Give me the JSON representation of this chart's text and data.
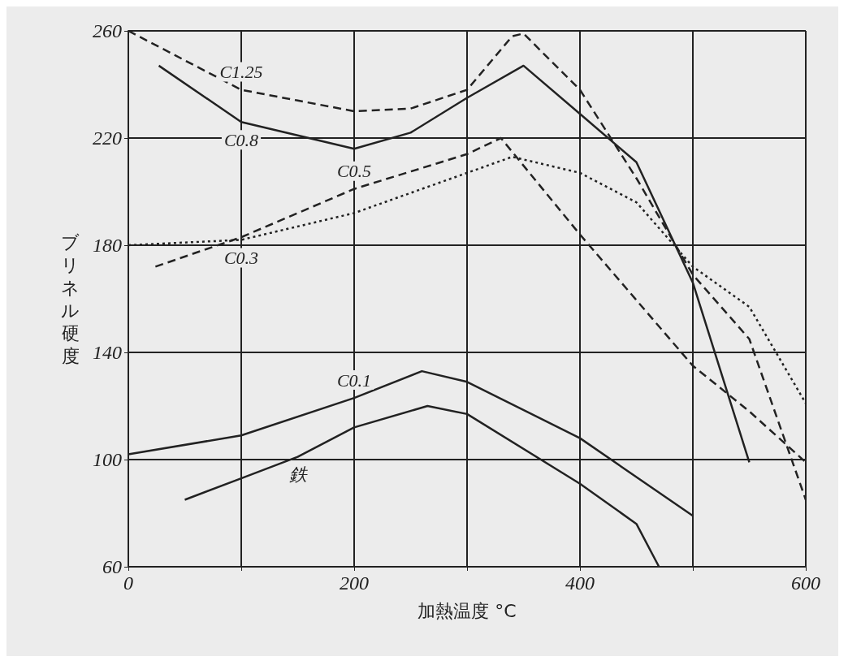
{
  "chart_data": {
    "type": "line",
    "xlabel": "加熱温度 °C",
    "ylabel": "ブリネル硬度",
    "xlim": [
      0,
      600
    ],
    "xticks": [
      0,
      {
        "value": 100,
        "label": null
      },
      200,
      {
        "value": 300,
        "label": null
      },
      400,
      {
        "value": 500,
        "label": null
      },
      600
    ],
    "ylim": [
      60,
      260
    ],
    "yticks": [
      60,
      100,
      140,
      180,
      220,
      260
    ],
    "grid": true,
    "marker": "none",
    "legend": false,
    "series": [
      {
        "name": "C1.25",
        "color": "#222222",
        "line_style": "dashed",
        "x": [
          0,
          100,
          150,
          200,
          250,
          300,
          340,
          350,
          400,
          450,
          500,
          550,
          600
        ],
        "values": [
          260,
          238,
          234,
          230,
          231,
          238,
          258,
          259,
          238,
          205,
          169,
          145,
          85
        ]
      },
      {
        "name": "C0.8",
        "color": "#222222",
        "line_style": "solid",
        "x": [
          27,
          100,
          200,
          250,
          300,
          350,
          400,
          450,
          500,
          550
        ],
        "values": [
          247,
          226,
          216,
          222,
          235,
          247,
          229,
          211,
          166,
          99
        ]
      },
      {
        "name": "C0.5",
        "color": "#222222",
        "line_style": "dashed",
        "x": [
          24,
          100,
          200,
          300,
          330,
          400,
          500,
          550,
          600
        ],
        "values": [
          172,
          183,
          201,
          214,
          220,
          184,
          135,
          118,
          99
        ]
      },
      {
        "name": "C0.3",
        "color": "#222222",
        "line_style": "dotted",
        "x": [
          0,
          100,
          200,
          300,
          340,
          400,
          450,
          500,
          550,
          600
        ],
        "values": [
          180,
          182,
          192,
          207,
          213,
          207,
          196,
          172,
          157,
          121
        ]
      },
      {
        "name": "C0.1",
        "color": "#222222",
        "line_style": "solid",
        "x": [
          0,
          100,
          200,
          260,
          300,
          400,
          500
        ],
        "values": [
          102,
          109,
          123,
          133,
          129,
          108,
          79
        ]
      },
      {
        "name": "鉄",
        "color": "#222222",
        "line_style": "solid",
        "x": [
          50,
          100,
          150,
          200,
          265,
          300,
          400,
          450,
          470
        ],
        "values": [
          85,
          93,
          101,
          112,
          120,
          117,
          91,
          76,
          60
        ]
      }
    ]
  }
}
